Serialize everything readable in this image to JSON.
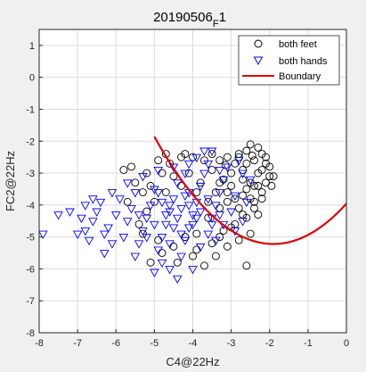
{
  "chart_data": {
    "type": "scatter",
    "title": "20190506_F1",
    "title_main": "20190506",
    "title_sub": "F",
    "title_tail": "1",
    "xlabel": "C4@22Hz",
    "ylabel": "FC2@22Hz",
    "xlim": [
      -8,
      0
    ],
    "ylim": [
      -8,
      1.5
    ],
    "xticks": [
      -8,
      -7,
      -6,
      -5,
      -4,
      -3,
      -2,
      -1,
      0
    ],
    "yticks": [
      -8,
      -7,
      -6,
      -5,
      -4,
      -3,
      -2,
      -1,
      0,
      1
    ],
    "grid": true,
    "legend_position": "top-right",
    "background": "#f0f0f0",
    "plot_background": "#ffffff",
    "series": [
      {
        "name": "both feet",
        "marker": "circle",
        "color": "#000000",
        "points": [
          [
            -2.5,
            -2.1
          ],
          [
            -2.3,
            -2.2
          ],
          [
            -2.2,
            -2.4
          ],
          [
            -2.6,
            -2.3
          ],
          [
            -2.4,
            -2.6
          ],
          [
            -2.1,
            -2.7
          ],
          [
            -2.8,
            -2.4
          ],
          [
            -2.7,
            -2.9
          ],
          [
            -2.3,
            -3.0
          ],
          [
            -2.0,
            -3.1
          ],
          [
            -2.5,
            -3.3
          ],
          [
            -2.9,
            -2.7
          ],
          [
            -3.1,
            -2.5
          ],
          [
            -3.3,
            -2.6
          ],
          [
            -3.0,
            -3.0
          ],
          [
            -2.6,
            -3.5
          ],
          [
            -2.2,
            -3.6
          ],
          [
            -2.4,
            -3.9
          ],
          [
            -2.7,
            -3.7
          ],
          [
            -3.2,
            -3.2
          ],
          [
            -3.5,
            -2.9
          ],
          [
            -3.7,
            -2.6
          ],
          [
            -4.0,
            -2.5
          ],
          [
            -4.3,
            -2.5
          ],
          [
            -4.6,
            -2.7
          ],
          [
            -4.8,
            -3.0
          ],
          [
            -5.1,
            -3.4
          ],
          [
            -5.3,
            -3.6
          ],
          [
            -5.6,
            -2.8
          ],
          [
            -5.8,
            -2.9
          ],
          [
            -4.9,
            -2.6
          ],
          [
            -4.5,
            -3.1
          ],
          [
            -4.1,
            -3.0
          ],
          [
            -3.8,
            -3.3
          ],
          [
            -3.4,
            -3.6
          ],
          [
            -3.1,
            -3.9
          ],
          [
            -2.8,
            -4.1
          ],
          [
            -2.6,
            -4.4
          ],
          [
            -2.9,
            -4.6
          ],
          [
            -3.2,
            -4.8
          ],
          [
            -2.5,
            -4.9
          ],
          [
            -2.3,
            -4.3
          ],
          [
            -2.1,
            -3.3
          ],
          [
            -1.9,
            -3.1
          ],
          [
            -2.0,
            -2.8
          ],
          [
            -2.2,
            -2.9
          ],
          [
            -2.4,
            -3.4
          ],
          [
            -2.7,
            -3.2
          ],
          [
            -3.0,
            -3.4
          ],
          [
            -3.3,
            -4.1
          ],
          [
            -3.6,
            -4.4
          ],
          [
            -3.9,
            -4.9
          ],
          [
            -4.2,
            -5.0
          ],
          [
            -4.5,
            -5.3
          ],
          [
            -4.0,
            -5.6
          ],
          [
            -3.7,
            -5.9
          ],
          [
            -3.4,
            -5.6
          ],
          [
            -3.1,
            -5.3
          ],
          [
            -2.8,
            -5.1
          ],
          [
            -2.6,
            -5.9
          ],
          [
            -3.5,
            -5.2
          ],
          [
            -4.8,
            -5.5
          ],
          [
            -5.1,
            -5.8
          ],
          [
            -4.4,
            -5.8
          ],
          [
            -3.9,
            -5.4
          ],
          [
            -5.4,
            -4.6
          ],
          [
            -5.2,
            -4.2
          ],
          [
            -5.0,
            -3.9
          ],
          [
            -4.7,
            -3.6
          ],
          [
            -4.3,
            -3.4
          ],
          [
            -3.9,
            -3.6
          ],
          [
            -3.6,
            -3.9
          ],
          [
            -3.3,
            -3.3
          ],
          [
            -3.1,
            -3.6
          ],
          [
            -2.9,
            -3.8
          ],
          [
            -2.5,
            -3.8
          ],
          [
            -2.3,
            -3.4
          ],
          [
            -2.6,
            -2.7
          ],
          [
            -2.8,
            -2.5
          ],
          [
            -3.5,
            -2.4
          ],
          [
            -4.2,
            -2.4
          ],
          [
            -4.7,
            -2.4
          ],
          [
            -5.2,
            -3.0
          ],
          [
            -5.5,
            -3.3
          ],
          [
            -5.7,
            -3.9
          ],
          [
            -5.3,
            -4.9
          ],
          [
            -4.9,
            -5.1
          ],
          [
            -3.3,
            -5.0
          ],
          [
            -3.0,
            -4.7
          ],
          [
            -2.7,
            -4.3
          ],
          [
            -2.4,
            -4.1
          ],
          [
            -2.2,
            -3.8
          ],
          [
            -1.95,
            -3.4
          ],
          [
            -2.1,
            -2.5
          ],
          [
            -2.45,
            -2.45
          ],
          [
            -3.15,
            -2.75
          ]
        ]
      },
      {
        "name": "both hands",
        "marker": "triangle-down",
        "color": "#0000ff",
        "points": [
          [
            -7.9,
            -4.9
          ],
          [
            -7.2,
            -4.2
          ],
          [
            -6.9,
            -4.4
          ],
          [
            -6.8,
            -4.8
          ],
          [
            -6.6,
            -4.5
          ],
          [
            -6.5,
            -4.2
          ],
          [
            -6.4,
            -3.9
          ],
          [
            -6.2,
            -4.7
          ],
          [
            -6.0,
            -4.3
          ],
          [
            -5.9,
            -3.8
          ],
          [
            -5.8,
            -5.0
          ],
          [
            -5.7,
            -4.5
          ],
          [
            -5.6,
            -4.1
          ],
          [
            -5.5,
            -3.6
          ],
          [
            -5.4,
            -5.2
          ],
          [
            -5.3,
            -4.8
          ],
          [
            -5.2,
            -4.4
          ],
          [
            -5.1,
            -4.0
          ],
          [
            -5.0,
            -3.5
          ],
          [
            -4.9,
            -5.4
          ],
          [
            -4.8,
            -5.0
          ],
          [
            -4.7,
            -4.6
          ],
          [
            -4.6,
            -4.2
          ],
          [
            -4.5,
            -3.8
          ],
          [
            -4.4,
            -3.3
          ],
          [
            -4.3,
            -5.6
          ],
          [
            -4.2,
            -5.1
          ],
          [
            -4.1,
            -4.7
          ],
          [
            -4.0,
            -4.3
          ],
          [
            -3.9,
            -3.9
          ],
          [
            -3.8,
            -3.4
          ],
          [
            -3.7,
            -3.0
          ],
          [
            -3.6,
            -4.9
          ],
          [
            -3.5,
            -4.4
          ],
          [
            -3.4,
            -4.0
          ],
          [
            -3.3,
            -3.6
          ],
          [
            -3.2,
            -3.2
          ],
          [
            -3.1,
            -2.8
          ],
          [
            -3.0,
            -4.2
          ],
          [
            -2.9,
            -3.7
          ],
          [
            -2.8,
            -2.6
          ],
          [
            -3.5,
            -2.3
          ],
          [
            -3.7,
            -2.3
          ],
          [
            -3.9,
            -2.5
          ],
          [
            -4.1,
            -2.7
          ],
          [
            -4.6,
            -6.0
          ],
          [
            -4.4,
            -6.3
          ],
          [
            -4.0,
            -6.0
          ],
          [
            -4.8,
            -5.8
          ],
          [
            -5.0,
            -6.1
          ],
          [
            -5.5,
            -5.6
          ],
          [
            -6.1,
            -5.2
          ],
          [
            -6.3,
            -5.5
          ],
          [
            -6.7,
            -5.1
          ],
          [
            -7.0,
            -4.9
          ],
          [
            -6.6,
            -3.8
          ],
          [
            -6.1,
            -3.6
          ],
          [
            -5.7,
            -3.3
          ],
          [
            -5.3,
            -3.1
          ],
          [
            -4.9,
            -2.9
          ],
          [
            -4.5,
            -2.8
          ],
          [
            -4.2,
            -3.0
          ],
          [
            -3.8,
            -5.3
          ],
          [
            -3.4,
            -5.1
          ],
          [
            -3.2,
            -4.6
          ],
          [
            -2.9,
            -4.8
          ],
          [
            -2.7,
            -4.5
          ],
          [
            -2.6,
            -3.9
          ],
          [
            -2.5,
            -3.2
          ],
          [
            -2.7,
            -3.0
          ],
          [
            -3.3,
            -2.9
          ],
          [
            -3.6,
            -2.7
          ],
          [
            -4.3,
            -4.1
          ],
          [
            -4.1,
            -4.0
          ],
          [
            -4.4,
            -4.4
          ],
          [
            -4.6,
            -4.0
          ],
          [
            -4.0,
            -4.6
          ],
          [
            -3.8,
            -4.2
          ],
          [
            -4.2,
            -3.7
          ],
          [
            -4.7,
            -4.3
          ],
          [
            -3.9,
            -4.4
          ],
          [
            -4.5,
            -4.7
          ],
          [
            -4.1,
            -3.6
          ],
          [
            -4.8,
            -3.9
          ],
          [
            -3.6,
            -3.8
          ],
          [
            -4.3,
            -4.9
          ],
          [
            -5.0,
            -4.6
          ],
          [
            -3.5,
            -4.6
          ],
          [
            -4.6,
            -5.2
          ],
          [
            -5.2,
            -5.0
          ],
          [
            -3.3,
            -4.3
          ],
          [
            -4.9,
            -3.6
          ],
          [
            -5.4,
            -4.3
          ],
          [
            -6.8,
            -4.0
          ],
          [
            -7.5,
            -4.3
          ],
          [
            -6.3,
            -4.9
          ]
        ]
      },
      {
        "name": "Boundary",
        "marker": "line",
        "color": "#e00000",
        "curve": {
          "type": "parabola",
          "vertex_x": -1.9,
          "vertex_y": -5.22,
          "a": 0.35,
          "x_from": -5.0,
          "x_to": 0
        }
      }
    ]
  }
}
